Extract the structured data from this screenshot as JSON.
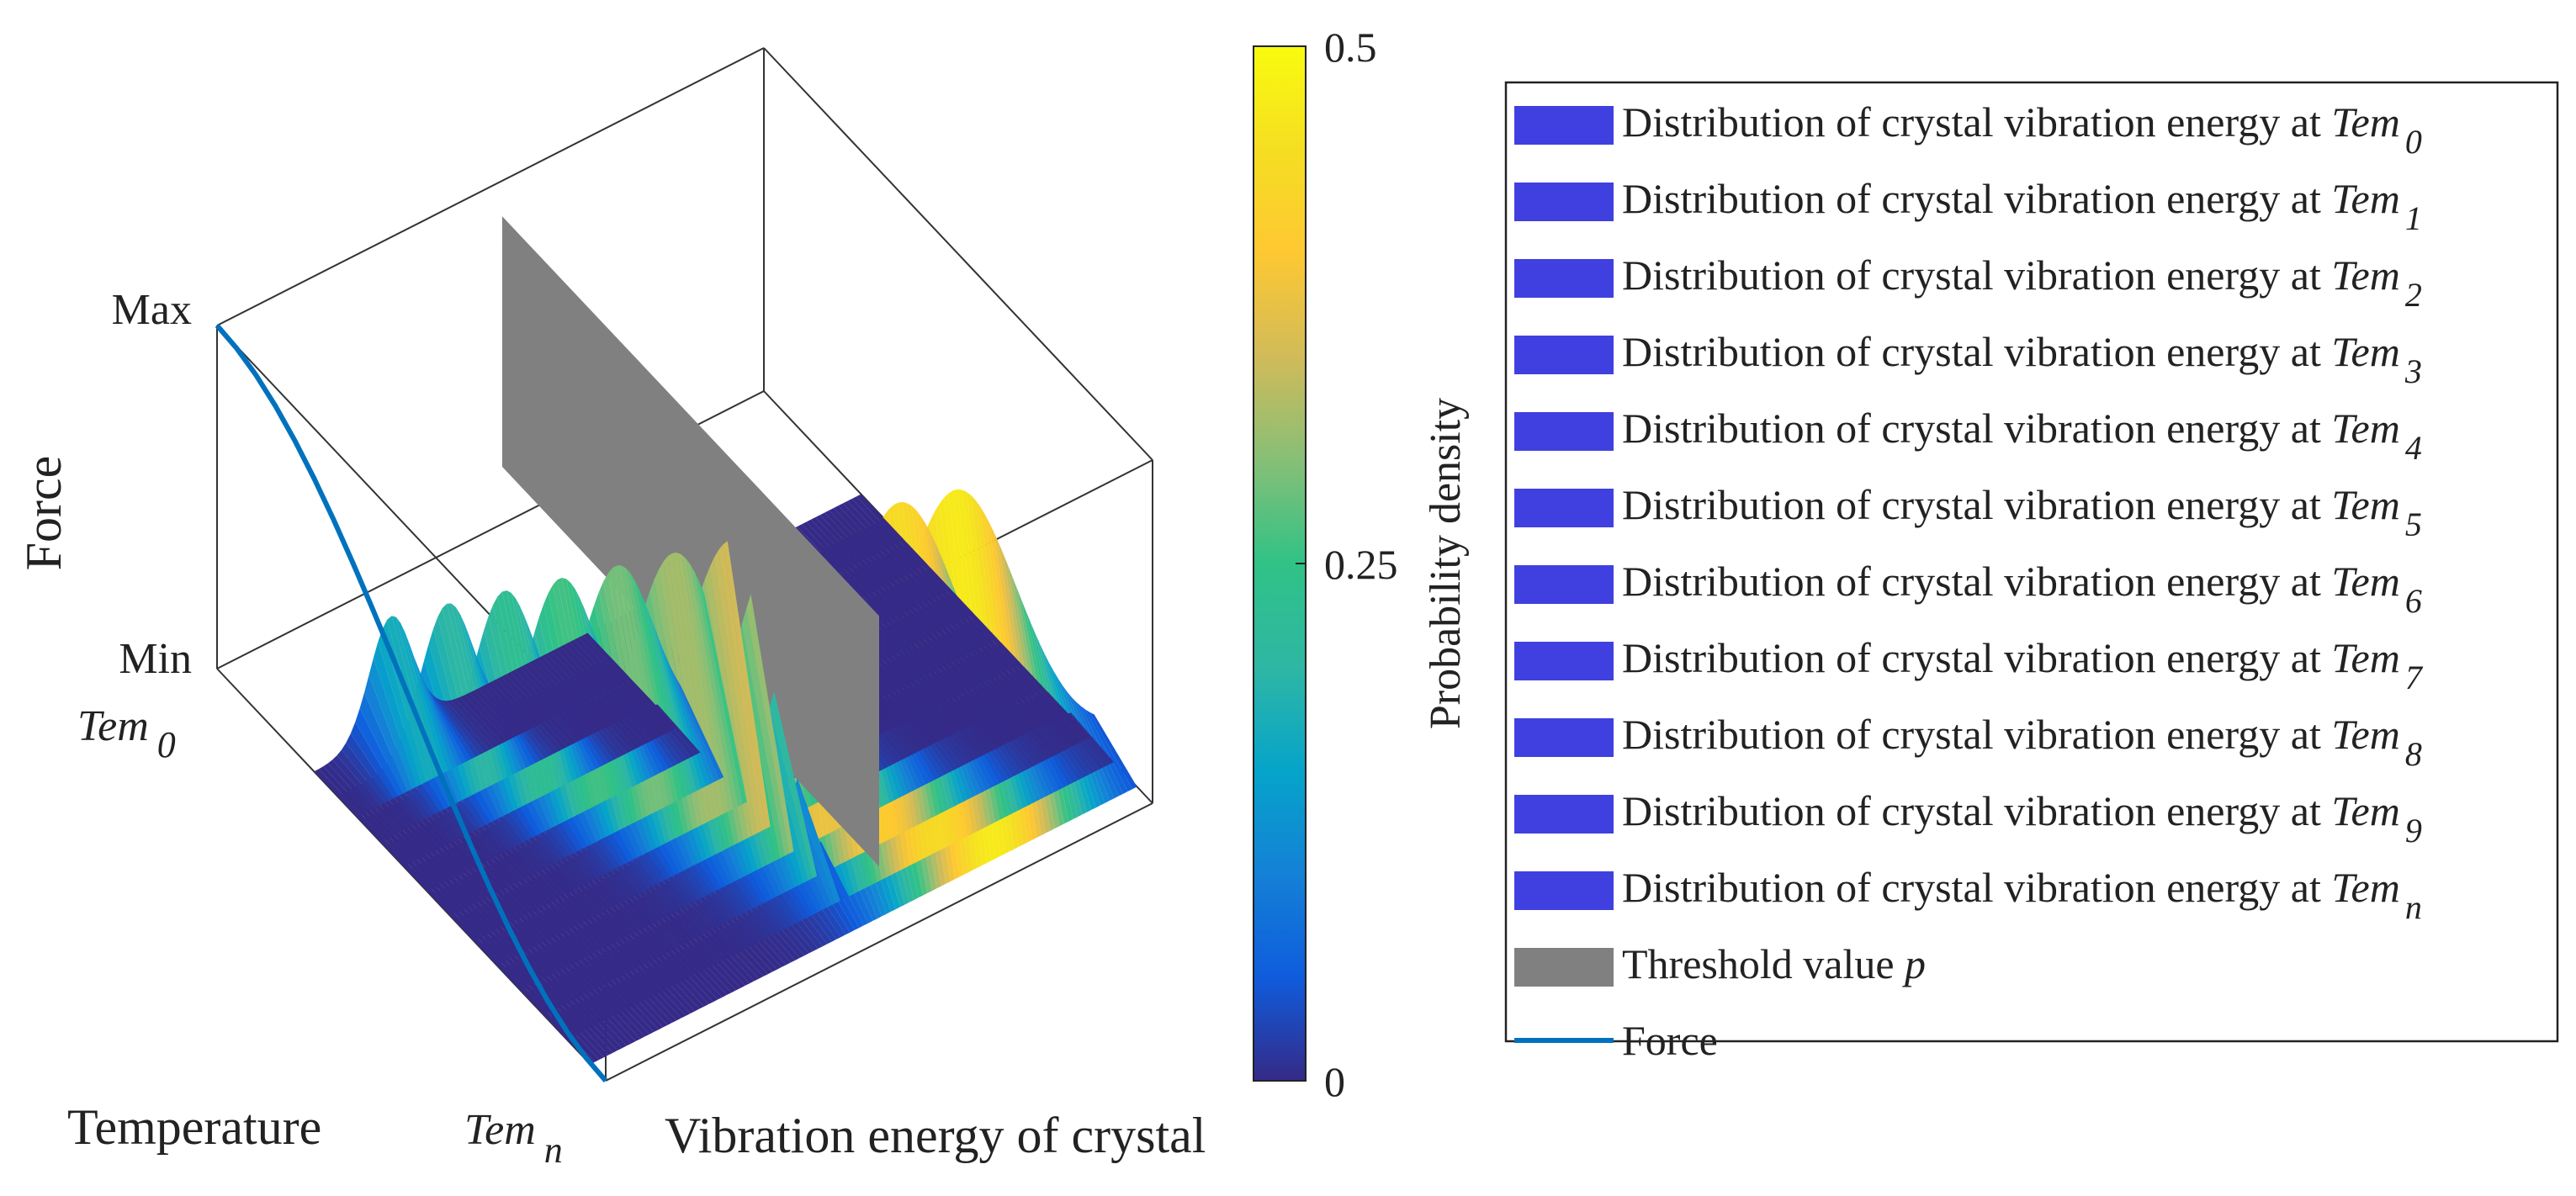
{
  "chart_data": {
    "type": "3d-surface-waterfall",
    "axes": {
      "x_label": "Temperature",
      "x_start_label": "Tem",
      "x_start_sub": "0",
      "x_end_label": "Tem",
      "x_end_sub": "n",
      "y_label": "Vibration energy of crystal",
      "z_label": "Force",
      "z_max_label": "Max",
      "z_min_label": "Min"
    },
    "colorbar": {
      "label": "Probability density",
      "min": 0,
      "max": 0.5,
      "ticks": [
        0,
        0.25,
        0.5
      ],
      "tick_labels": [
        "0",
        "0.25",
        "0.5"
      ],
      "colormap": "parula"
    },
    "force_curve": {
      "name": "Force",
      "color": "#0072BD",
      "t": [
        0,
        0.05,
        0.1,
        0.15,
        0.2,
        0.25,
        0.3,
        0.35,
        0.4,
        0.45,
        0.5,
        0.55,
        0.6,
        0.65,
        0.7,
        0.75,
        0.8,
        0.85,
        0.9,
        0.95,
        1.0
      ],
      "f": [
        1.0,
        0.994,
        0.976,
        0.946,
        0.905,
        0.854,
        0.794,
        0.727,
        0.655,
        0.579,
        0.5,
        0.421,
        0.345,
        0.273,
        0.206,
        0.146,
        0.095,
        0.054,
        0.024,
        0.006,
        0.0
      ]
    },
    "distributions": {
      "temperatures": [
        0.25,
        0.31,
        0.37,
        0.43,
        0.49,
        0.55,
        0.61,
        0.67,
        0.73,
        0.79,
        0.85
      ],
      "peak_positions": [
        0.14,
        0.2,
        0.26,
        0.32,
        0.38,
        0.44,
        0.5,
        0.56,
        0.62,
        0.68,
        0.74
      ],
      "peak_heights": [
        0.17,
        0.2,
        0.23,
        0.26,
        0.29,
        0.32,
        0.35,
        0.38,
        0.41,
        0.44,
        0.47
      ],
      "widths": [
        0.1,
        0.12,
        0.14,
        0.16,
        0.18,
        0.2,
        0.22,
        0.24,
        0.26,
        0.28,
        0.3
      ]
    },
    "threshold": {
      "name": "Threshold value",
      "symbol": "p",
      "position": 0.5,
      "color": "#808080"
    },
    "legend": {
      "items": [
        {
          "text": "Distribution of crystal vibration energy at ",
          "sym": "Tem",
          "sub": "0",
          "kind": "patch",
          "color": "#4040E0"
        },
        {
          "text": "Distribution of crystal vibration energy at ",
          "sym": "Tem",
          "sub": "1",
          "kind": "patch",
          "color": "#4040E0"
        },
        {
          "text": "Distribution of crystal vibration energy at ",
          "sym": "Tem",
          "sub": "2",
          "kind": "patch",
          "color": "#4040E0"
        },
        {
          "text": "Distribution of crystal vibration energy at ",
          "sym": "Tem",
          "sub": "3",
          "kind": "patch",
          "color": "#4040E0"
        },
        {
          "text": "Distribution of crystal vibration energy at ",
          "sym": "Tem",
          "sub": "4",
          "kind": "patch",
          "color": "#4040E0"
        },
        {
          "text": "Distribution of crystal vibration energy at ",
          "sym": "Tem",
          "sub": "5",
          "kind": "patch",
          "color": "#4040E0"
        },
        {
          "text": "Distribution of crystal vibration energy at ",
          "sym": "Tem",
          "sub": "6",
          "kind": "patch",
          "color": "#4040E0"
        },
        {
          "text": "Distribution of crystal vibration energy at ",
          "sym": "Tem",
          "sub": "7",
          "kind": "patch",
          "color": "#4040E0"
        },
        {
          "text": "Distribution of crystal vibration energy at ",
          "sym": "Tem",
          "sub": "8",
          "kind": "patch",
          "color": "#4040E0"
        },
        {
          "text": "Distribution of crystal vibration energy at ",
          "sym": "Tem",
          "sub": "9",
          "kind": "patch",
          "color": "#4040E0"
        },
        {
          "text": "Distribution of crystal vibration energy at ",
          "sym": "Tem",
          "sub": "n",
          "kind": "patch",
          "color": "#4040E0"
        },
        {
          "text": "Threshold value ",
          "sym": "p",
          "sub": "",
          "kind": "patch",
          "color": "#808080"
        },
        {
          "text": "Force",
          "sym": "",
          "sub": "",
          "kind": "line",
          "color": "#0072BD"
        }
      ]
    }
  }
}
